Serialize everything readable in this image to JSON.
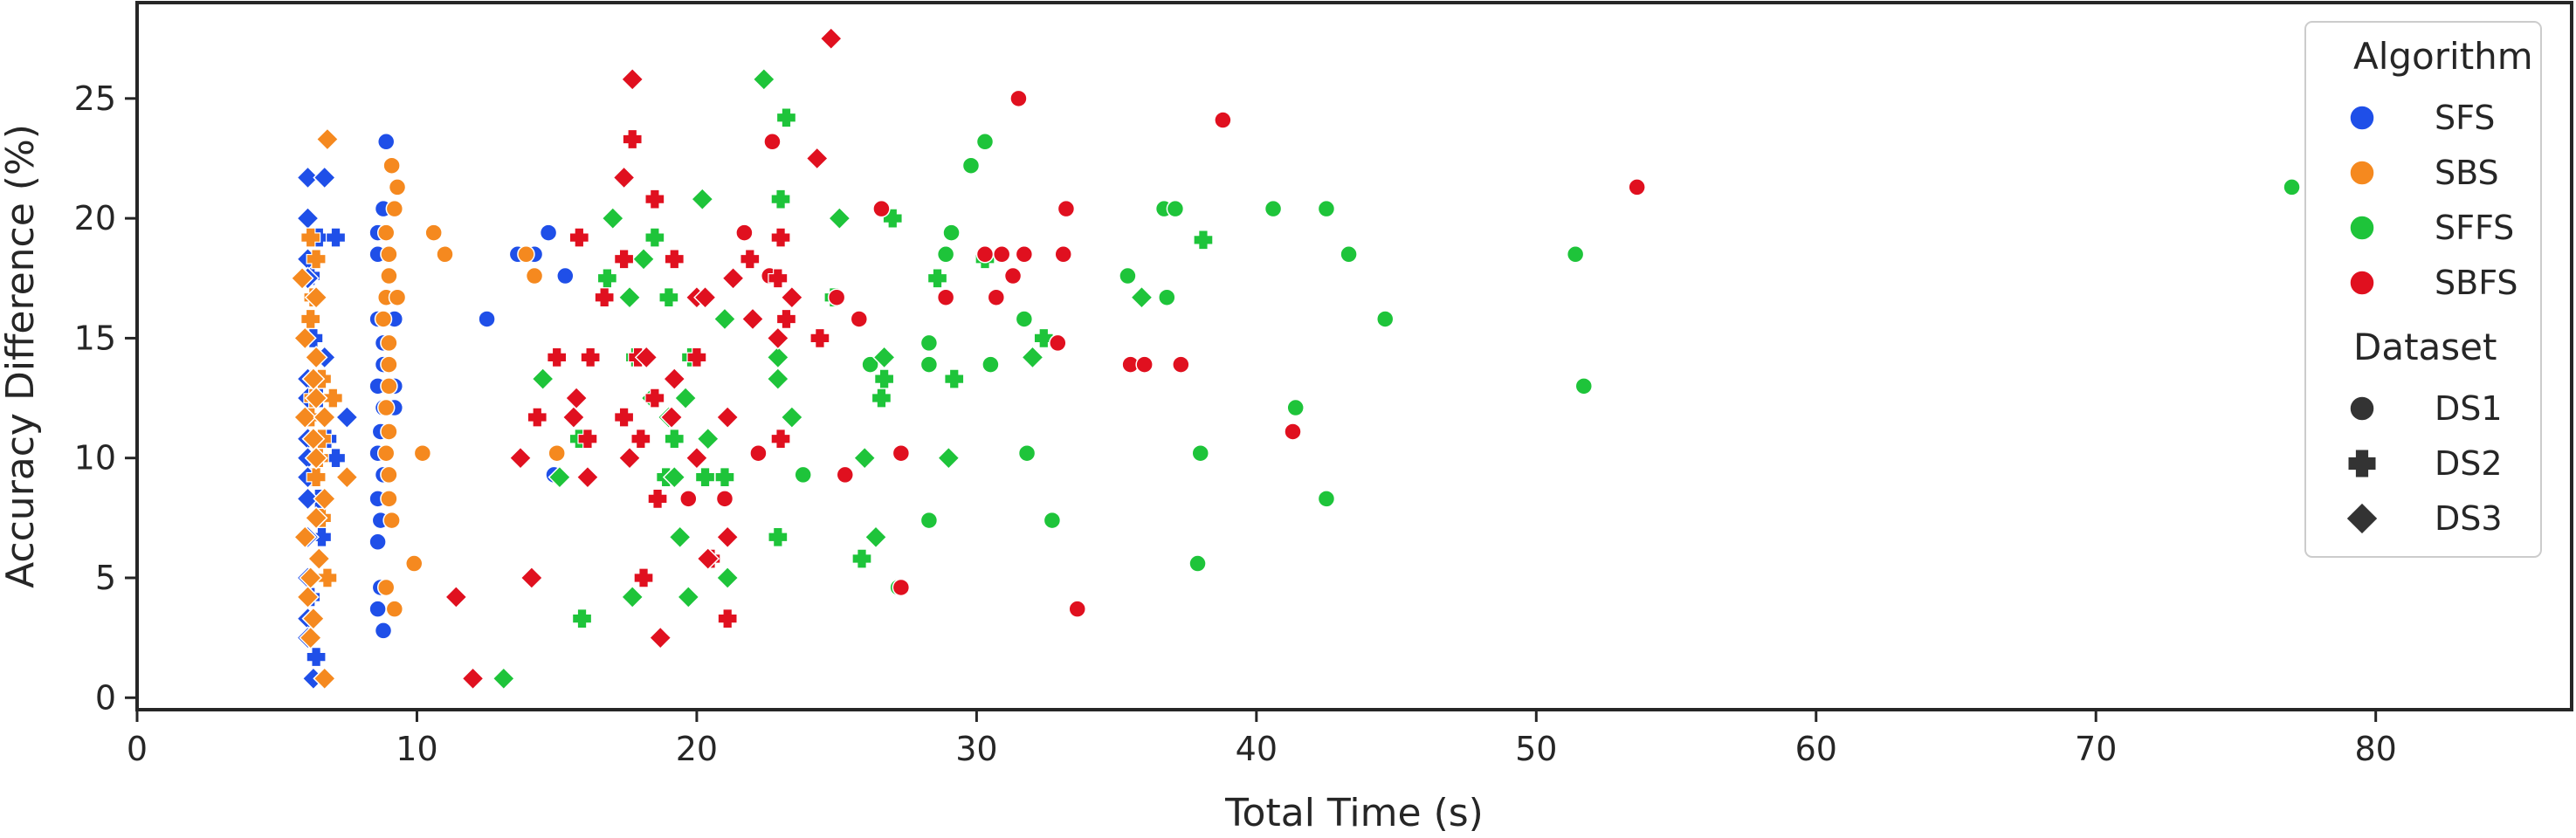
{
  "chart_data": {
    "type": "scatter",
    "xlabel": "Total Time (s)",
    "ylabel": "Accuracy Difference (%)",
    "xlim": [
      0,
      87
    ],
    "ylim": [
      -0.5,
      29
    ],
    "x_ticks": [
      0,
      10,
      20,
      30,
      40,
      50,
      60,
      70,
      80
    ],
    "y_ticks": [
      0,
      5,
      10,
      15,
      20,
      25
    ],
    "grid": false,
    "legend": {
      "placement": "top-right",
      "hue_title": "Algorithm",
      "style_title": "Dataset",
      "algorithms": [
        {
          "name": "SFS",
          "color": "#1f4fe8"
        },
        {
          "name": "SBS",
          "color": "#f5891f"
        },
        {
          "name": "SFFS",
          "color": "#1ec43a"
        },
        {
          "name": "SBFS",
          "color": "#e0101f"
        }
      ],
      "datasets": [
        {
          "name": "DS1",
          "marker": "circle"
        },
        {
          "name": "DS2",
          "marker": "plus"
        },
        {
          "name": "DS3",
          "marker": "diamond"
        }
      ]
    },
    "series": [
      {
        "algorithm": "SFS",
        "dataset": "DS1",
        "points": [
          [
            8.9,
            23.2
          ],
          [
            8.8,
            20.4
          ],
          [
            8.6,
            19.4
          ],
          [
            8.6,
            18.5
          ],
          [
            8.6,
            15.8
          ],
          [
            9.2,
            15.8
          ],
          [
            8.8,
            14.8
          ],
          [
            8.8,
            13.9
          ],
          [
            8.6,
            13.0
          ],
          [
            9.2,
            13.0
          ],
          [
            8.8,
            12.1
          ],
          [
            9.2,
            12.1
          ],
          [
            8.7,
            11.1
          ],
          [
            8.6,
            10.2
          ],
          [
            8.8,
            9.3
          ],
          [
            8.6,
            8.3
          ],
          [
            8.7,
            7.4
          ],
          [
            8.6,
            6.5
          ],
          [
            8.7,
            4.6
          ],
          [
            8.6,
            3.7
          ],
          [
            8.8,
            2.8
          ],
          [
            12.5,
            15.8
          ],
          [
            13.6,
            18.5
          ],
          [
            14.2,
            18.5
          ],
          [
            14.7,
            19.4
          ],
          [
            14.9,
            9.3
          ],
          [
            15.3,
            17.6
          ]
        ]
      },
      {
        "algorithm": "SFS",
        "dataset": "DS2",
        "points": [
          [
            6.2,
            17.6
          ],
          [
            6.5,
            19.2
          ],
          [
            7.1,
            19.2
          ],
          [
            6.3,
            15.0
          ],
          [
            6.2,
            13.3
          ],
          [
            6.5,
            12.5
          ],
          [
            6.2,
            11.7
          ],
          [
            6.8,
            10.8
          ],
          [
            7.1,
            10.0
          ],
          [
            6.3,
            9.2
          ],
          [
            6.5,
            8.3
          ],
          [
            6.6,
            6.7
          ],
          [
            6.2,
            4.2
          ],
          [
            6.4,
            1.7
          ]
        ]
      },
      {
        "algorithm": "SFS",
        "dataset": "DS3",
        "points": [
          [
            6.1,
            21.7
          ],
          [
            6.7,
            21.7
          ],
          [
            6.1,
            20.0
          ],
          [
            6.1,
            18.3
          ],
          [
            6.1,
            17.5
          ],
          [
            6.7,
            14.2
          ],
          [
            6.1,
            13.3
          ],
          [
            6.1,
            12.5
          ],
          [
            7.5,
            11.7
          ],
          [
            6.1,
            10.8
          ],
          [
            6.1,
            10.0
          ],
          [
            6.1,
            9.2
          ],
          [
            6.1,
            8.3
          ],
          [
            6.1,
            6.7
          ],
          [
            6.1,
            5.0
          ],
          [
            6.1,
            3.3
          ],
          [
            6.1,
            2.5
          ],
          [
            6.3,
            0.8
          ]
        ]
      },
      {
        "algorithm": "SBS",
        "dataset": "DS1",
        "points": [
          [
            9.1,
            22.2
          ],
          [
            9.3,
            21.3
          ],
          [
            9.2,
            20.4
          ],
          [
            8.9,
            19.4
          ],
          [
            9.0,
            18.5
          ],
          [
            9.0,
            17.6
          ],
          [
            8.9,
            16.7
          ],
          [
            9.3,
            16.7
          ],
          [
            8.8,
            15.8
          ],
          [
            9.0,
            14.8
          ],
          [
            9.0,
            13.9
          ],
          [
            9.0,
            13.0
          ],
          [
            8.9,
            12.1
          ],
          [
            9.0,
            11.1
          ],
          [
            8.9,
            10.2
          ],
          [
            9.0,
            9.3
          ],
          [
            9.0,
            8.3
          ],
          [
            9.1,
            7.4
          ],
          [
            10.6,
            19.4
          ],
          [
            11.0,
            18.5
          ],
          [
            9.9,
            5.6
          ],
          [
            10.2,
            10.2
          ],
          [
            8.9,
            4.6
          ],
          [
            9.2,
            3.7
          ],
          [
            14.2,
            17.6
          ],
          [
            15.0,
            10.2
          ],
          [
            13.9,
            18.5
          ]
        ]
      },
      {
        "algorithm": "SBS",
        "dataset": "DS2",
        "points": [
          [
            6.2,
            19.2
          ],
          [
            6.4,
            18.3
          ],
          [
            6.3,
            16.7
          ],
          [
            6.2,
            15.8
          ],
          [
            6.6,
            13.3
          ],
          [
            6.3,
            12.5
          ],
          [
            7.0,
            12.5
          ],
          [
            6.2,
            11.7
          ],
          [
            6.6,
            10.8
          ],
          [
            6.5,
            10.0
          ],
          [
            6.4,
            9.2
          ],
          [
            6.6,
            7.5
          ],
          [
            6.8,
            5.0
          ]
        ]
      },
      {
        "algorithm": "SBS",
        "dataset": "DS3",
        "points": [
          [
            6.8,
            23.3
          ],
          [
            5.9,
            17.5
          ],
          [
            6.4,
            16.7
          ],
          [
            6.0,
            15.0
          ],
          [
            6.4,
            14.2
          ],
          [
            6.3,
            13.3
          ],
          [
            6.4,
            12.5
          ],
          [
            6.0,
            11.7
          ],
          [
            6.7,
            11.7
          ],
          [
            6.3,
            10.8
          ],
          [
            6.4,
            10.0
          ],
          [
            7.5,
            9.2
          ],
          [
            6.7,
            8.3
          ],
          [
            6.4,
            7.5
          ],
          [
            6.0,
            6.7
          ],
          [
            6.5,
            5.8
          ],
          [
            6.2,
            5.0
          ],
          [
            6.1,
            4.2
          ],
          [
            6.3,
            3.3
          ],
          [
            6.2,
            2.5
          ],
          [
            6.7,
            0.8
          ]
        ]
      },
      {
        "algorithm": "SFFS",
        "dataset": "DS1",
        "points": [
          [
            77.0,
            21.3
          ],
          [
            30.3,
            23.2
          ],
          [
            29.8,
            22.2
          ],
          [
            36.7,
            20.4
          ],
          [
            37.1,
            20.4
          ],
          [
            40.6,
            20.4
          ],
          [
            42.5,
            20.4
          ],
          [
            29.1,
            19.4
          ],
          [
            43.3,
            18.5
          ],
          [
            51.4,
            18.5
          ],
          [
            28.9,
            18.5
          ],
          [
            35.4,
            17.6
          ],
          [
            36.8,
            16.7
          ],
          [
            31.3,
            17.6
          ],
          [
            31.7,
            15.8
          ],
          [
            44.6,
            15.8
          ],
          [
            26.2,
            13.9
          ],
          [
            30.5,
            13.9
          ],
          [
            28.3,
            13.9
          ],
          [
            28.3,
            14.8
          ],
          [
            51.7,
            13.0
          ],
          [
            41.4,
            12.1
          ],
          [
            31.8,
            10.2
          ],
          [
            38.0,
            10.2
          ],
          [
            23.8,
            9.3
          ],
          [
            42.5,
            8.3
          ],
          [
            28.3,
            7.4
          ],
          [
            32.7,
            7.4
          ],
          [
            37.9,
            5.6
          ],
          [
            27.2,
            4.6
          ]
        ]
      },
      {
        "algorithm": "SFFS",
        "dataset": "DS2",
        "points": [
          [
            23.2,
            24.2
          ],
          [
            23.0,
            20.8
          ],
          [
            18.5,
            19.2
          ],
          [
            27.0,
            20.0
          ],
          [
            16.8,
            17.5
          ],
          [
            19.0,
            16.7
          ],
          [
            24.9,
            16.7
          ],
          [
            28.6,
            17.5
          ],
          [
            30.3,
            18.3
          ],
          [
            38.1,
            19.1
          ],
          [
            19.8,
            14.2
          ],
          [
            17.8,
            14.2
          ],
          [
            26.7,
            13.3
          ],
          [
            29.2,
            13.3
          ],
          [
            32.4,
            15.0
          ],
          [
            15.8,
            10.8
          ],
          [
            19.2,
            10.8
          ],
          [
            21.0,
            9.2
          ],
          [
            20.3,
            9.2
          ],
          [
            18.9,
            9.2
          ],
          [
            26.6,
            12.5
          ],
          [
            22.9,
            6.7
          ],
          [
            25.9,
            5.8
          ],
          [
            15.9,
            3.3
          ]
        ]
      },
      {
        "algorithm": "SFFS",
        "dataset": "DS3",
        "points": [
          [
            22.4,
            25.8
          ],
          [
            17.0,
            20.0
          ],
          [
            20.2,
            20.8
          ],
          [
            25.1,
            20.0
          ],
          [
            18.1,
            18.3
          ],
          [
            35.9,
            16.7
          ],
          [
            17.6,
            16.7
          ],
          [
            21.0,
            15.8
          ],
          [
            22.9,
            14.2
          ],
          [
            26.7,
            14.2
          ],
          [
            32.0,
            14.2
          ],
          [
            14.5,
            13.3
          ],
          [
            22.9,
            13.3
          ],
          [
            18.4,
            12.5
          ],
          [
            19.6,
            12.5
          ],
          [
            19.0,
            11.7
          ],
          [
            23.4,
            11.7
          ],
          [
            20.4,
            10.8
          ],
          [
            26.0,
            10.0
          ],
          [
            29.0,
            10.0
          ],
          [
            15.1,
            9.2
          ],
          [
            19.2,
            9.2
          ],
          [
            26.4,
            6.7
          ],
          [
            21.1,
            5.0
          ],
          [
            17.7,
            4.2
          ],
          [
            19.7,
            4.2
          ],
          [
            13.1,
            0.8
          ],
          [
            19.4,
            6.7
          ]
        ]
      },
      {
        "algorithm": "SBFS",
        "dataset": "DS1",
        "points": [
          [
            31.5,
            25.0
          ],
          [
            22.7,
            23.2
          ],
          [
            38.8,
            24.1
          ],
          [
            53.6,
            21.3
          ],
          [
            26.6,
            20.4
          ],
          [
            33.2,
            20.4
          ],
          [
            21.7,
            19.4
          ],
          [
            30.3,
            18.5
          ],
          [
            30.9,
            18.5
          ],
          [
            31.7,
            18.5
          ],
          [
            33.1,
            18.5
          ],
          [
            22.6,
            17.6
          ],
          [
            31.3,
            17.6
          ],
          [
            25.0,
            16.7
          ],
          [
            28.9,
            16.7
          ],
          [
            30.7,
            16.7
          ],
          [
            25.8,
            15.8
          ],
          [
            32.9,
            14.8
          ],
          [
            35.5,
            13.9
          ],
          [
            36.0,
            13.9
          ],
          [
            37.3,
            13.9
          ],
          [
            41.3,
            11.1
          ],
          [
            22.2,
            10.2
          ],
          [
            27.3,
            10.2
          ],
          [
            25.3,
            9.3
          ],
          [
            19.7,
            8.3
          ],
          [
            21.0,
            8.3
          ],
          [
            27.3,
            4.6
          ],
          [
            33.6,
            3.7
          ]
        ]
      },
      {
        "algorithm": "SBFS",
        "dataset": "DS2",
        "points": [
          [
            17.7,
            23.3
          ],
          [
            18.5,
            20.8
          ],
          [
            23.0,
            19.2
          ],
          [
            15.8,
            19.2
          ],
          [
            17.4,
            18.3
          ],
          [
            19.2,
            18.3
          ],
          [
            21.9,
            18.3
          ],
          [
            22.9,
            17.5
          ],
          [
            16.7,
            16.7
          ],
          [
            23.2,
            15.8
          ],
          [
            24.4,
            15.0
          ],
          [
            15.0,
            14.2
          ],
          [
            16.2,
            14.2
          ],
          [
            17.9,
            14.2
          ],
          [
            20.0,
            14.2
          ],
          [
            14.3,
            11.7
          ],
          [
            18.5,
            12.5
          ],
          [
            17.4,
            11.7
          ],
          [
            16.1,
            10.8
          ],
          [
            18.0,
            10.8
          ],
          [
            23.0,
            10.8
          ],
          [
            18.6,
            8.3
          ],
          [
            18.1,
            5.0
          ],
          [
            20.5,
            5.8
          ],
          [
            21.1,
            3.3
          ]
        ]
      },
      {
        "algorithm": "SBFS",
        "dataset": "DS3",
        "points": [
          [
            24.8,
            27.5
          ],
          [
            17.7,
            25.8
          ],
          [
            24.3,
            22.5
          ],
          [
            17.4,
            21.7
          ],
          [
            21.3,
            17.5
          ],
          [
            20.0,
            16.7
          ],
          [
            23.4,
            16.7
          ],
          [
            20.3,
            16.7
          ],
          [
            22.0,
            15.8
          ],
          [
            22.9,
            15.0
          ],
          [
            18.2,
            14.2
          ],
          [
            19.2,
            13.3
          ],
          [
            15.7,
            12.5
          ],
          [
            15.6,
            11.7
          ],
          [
            19.1,
            11.7
          ],
          [
            21.1,
            11.7
          ],
          [
            20.0,
            10.0
          ],
          [
            13.7,
            10.0
          ],
          [
            17.6,
            10.0
          ],
          [
            16.1,
            9.2
          ],
          [
            21.1,
            6.7
          ],
          [
            20.4,
            5.8
          ],
          [
            14.1,
            5.0
          ],
          [
            11.4,
            4.2
          ],
          [
            18.7,
            2.5
          ],
          [
            12.0,
            0.8
          ]
        ]
      }
    ]
  }
}
